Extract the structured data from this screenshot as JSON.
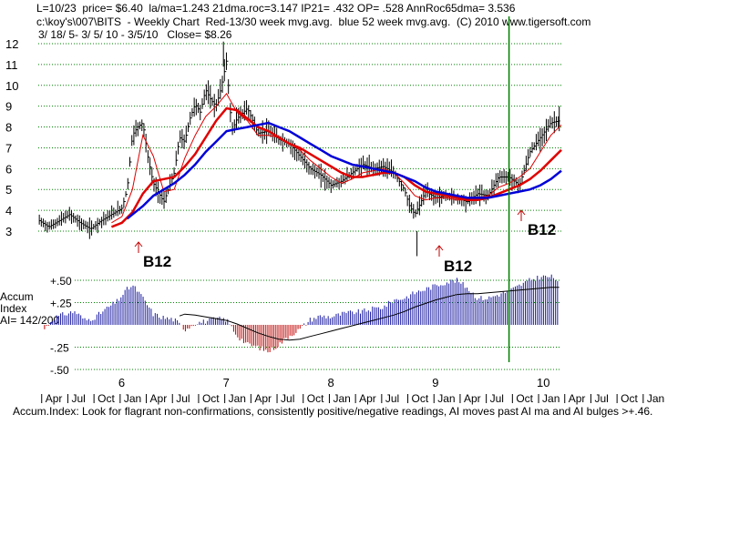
{
  "header": {
    "line1": "L=10/23  price= $6.40  la/ma=1.243 21dma.roc=3.147 IP21= .432 OP= .528 AnnRoc65dma= 3.536",
    "line2": "c:\\koy's\\007\\BITS  - Weekly Chart  Red-13/30 week mvg.avg.  blue 52 week mvg.avg.  (C) 2010 www.tigersoft.com",
    "line3": "3/ 18/ 5- 3/ 5/ 10 - 3/5/10   Close= $8.26"
  },
  "footer": "Accum.Index: Look for flagrant non-confirmations, consistently positive/negative readings, AI moves past AI ma and AI bulges >+.46.",
  "ai_panel": {
    "title_lines": [
      "Accum",
      "Index",
      "AI= 142/200"
    ]
  },
  "colors": {
    "price": "#000000",
    "ma_red": "#e00000",
    "ma_blue": "#0000d8",
    "ai_positive": "#1a1aa0",
    "ai_negative": "#c00000",
    "grid": "#008000",
    "signal_line": "#008000",
    "arrow": "#c00000"
  },
  "chart_data": [
    {
      "type": "line",
      "title": "",
      "ylim": [
        3,
        12
      ],
      "y_ticks": [
        3,
        4,
        5,
        6,
        7,
        8,
        9,
        10,
        11,
        12
      ],
      "x_year_labels": [
        "6",
        "7",
        "8",
        "9",
        "10"
      ],
      "x_month_labels": [
        "Apr",
        "Jul",
        "Oct",
        "Jan",
        "Apr",
        "Jul",
        "Oct",
        "Jan",
        "Apr",
        "Jul",
        "Oct",
        "Jan",
        "Apr",
        "Jul",
        "Oct",
        "Jan",
        "Apr",
        "Jul",
        "Oct",
        "Jan",
        "Apr",
        "Jul",
        "Oct",
        "Jan"
      ],
      "x_range": [
        2005.2,
        2010.2
      ],
      "series": [
        {
          "kind": "price",
          "x": [
            2005.21,
            2005.3,
            2005.4,
            2005.5,
            2005.6,
            2005.7,
            2005.8,
            2005.9,
            2006.0,
            2006.05,
            2006.1,
            2006.15,
            2006.2,
            2006.25,
            2006.3,
            2006.4,
            2006.5,
            2006.55,
            2006.6,
            2006.65,
            2006.7,
            2006.75,
            2006.8,
            2006.85,
            2006.9,
            2006.95,
            2007.0,
            2007.05,
            2007.1,
            2007.2,
            2007.3,
            2007.4,
            2007.5,
            2007.6,
            2007.7,
            2007.8,
            2007.9,
            2008.0,
            2008.1,
            2008.2,
            2008.3,
            2008.4,
            2008.5,
            2008.6,
            2008.7,
            2008.75,
            2008.8,
            2008.85,
            2008.9,
            2009.0,
            2009.1,
            2009.2,
            2009.3,
            2009.4,
            2009.5,
            2009.6,
            2009.7,
            2009.8,
            2009.9,
            2010.0,
            2010.1,
            2010.18
          ],
          "y": [
            3.5,
            3.2,
            3.5,
            3.8,
            3.4,
            3.1,
            3.5,
            3.8,
            4.1,
            5.0,
            7.6,
            8.0,
            8.2,
            6.5,
            5.3,
            4.4,
            5.8,
            7.5,
            7.3,
            8.4,
            9.1,
            8.7,
            9.8,
            9.3,
            9.0,
            9.9,
            11.2,
            7.8,
            8.4,
            8.9,
            7.7,
            7.8,
            7.4,
            7.2,
            6.6,
            6.0,
            5.7,
            5.2,
            5.4,
            5.8,
            6.2,
            6.0,
            6.1,
            5.8,
            5.0,
            4.2,
            3.8,
            4.3,
            4.9,
            4.6,
            4.7,
            4.6,
            4.4,
            4.8,
            4.7,
            5.6,
            5.6,
            5.2,
            6.8,
            7.5,
            8.2,
            8.3
          ]
        },
        {
          "kind": "ma_thin_red",
          "label": "13 week",
          "x": [
            2005.9,
            2006.0,
            2006.1,
            2006.2,
            2006.3,
            2006.4,
            2006.5,
            2006.6,
            2006.7,
            2006.8,
            2006.9,
            2007.0,
            2007.1,
            2007.2,
            2007.3,
            2007.4,
            2007.5,
            2007.6,
            2007.7,
            2007.8,
            2007.9,
            2008.0,
            2008.1,
            2008.2,
            2008.3,
            2008.4,
            2008.5,
            2008.6,
            2008.7,
            2008.8,
            2008.9,
            2009.0,
            2009.1,
            2009.2,
            2009.3,
            2009.4,
            2009.5,
            2009.6,
            2009.7,
            2009.8,
            2009.9,
            2010.0,
            2010.1,
            2010.2
          ],
          "y": [
            3.4,
            3.7,
            5.0,
            7.6,
            6.6,
            4.9,
            5.0,
            6.5,
            7.6,
            8.5,
            9.0,
            9.6,
            8.7,
            8.3,
            7.6,
            7.6,
            7.5,
            7.2,
            6.9,
            6.4,
            6.0,
            5.6,
            5.3,
            5.5,
            5.8,
            5.9,
            6.0,
            5.8,
            5.3,
            4.7,
            4.5,
            4.6,
            4.6,
            4.5,
            4.5,
            4.6,
            4.7,
            5.1,
            5.3,
            5.6,
            6.0,
            6.8,
            7.6,
            8.1
          ]
        },
        {
          "kind": "ma_thick_red",
          "label": "30 week",
          "x": [
            2005.9,
            2006.0,
            2006.1,
            2006.2,
            2006.3,
            2006.4,
            2006.5,
            2006.6,
            2006.7,
            2006.8,
            2006.9,
            2007.0,
            2007.1,
            2007.2,
            2007.3,
            2007.4,
            2007.5,
            2007.6,
            2007.7,
            2007.8,
            2007.9,
            2008.0,
            2008.1,
            2008.2,
            2008.3,
            2008.4,
            2008.5,
            2008.6,
            2008.7,
            2008.8,
            2008.9,
            2009.0,
            2009.1,
            2009.2,
            2009.3,
            2009.4,
            2009.5,
            2009.6,
            2009.7,
            2009.8,
            2009.9,
            2010.0,
            2010.1,
            2010.2
          ],
          "y": [
            3.2,
            3.4,
            3.9,
            4.8,
            5.4,
            5.5,
            5.6,
            6.1,
            6.7,
            7.5,
            8.3,
            8.9,
            8.8,
            8.4,
            8.0,
            7.8,
            7.5,
            7.2,
            7.0,
            6.7,
            6.4,
            6.1,
            5.8,
            5.6,
            5.6,
            5.7,
            5.8,
            5.8,
            5.6,
            5.2,
            4.9,
            4.8,
            4.7,
            4.6,
            4.5,
            4.5,
            4.6,
            4.8,
            5.0,
            5.2,
            5.5,
            5.9,
            6.4,
            6.9
          ]
        },
        {
          "kind": "ma_blue",
          "label": "52 week",
          "x": [
            2006.05,
            2006.1,
            2006.2,
            2006.3,
            2006.4,
            2006.5,
            2006.6,
            2006.7,
            2006.8,
            2006.9,
            2007.0,
            2007.1,
            2007.2,
            2007.3,
            2007.4,
            2007.5,
            2007.6,
            2007.7,
            2007.8,
            2007.9,
            2008.0,
            2008.1,
            2008.2,
            2008.3,
            2008.4,
            2008.5,
            2008.6,
            2008.7,
            2008.8,
            2008.9,
            2009.0,
            2009.1,
            2009.2,
            2009.3,
            2009.4,
            2009.5,
            2009.6,
            2009.7,
            2009.8,
            2009.9,
            2010.0,
            2010.1,
            2010.2
          ],
          "y": [
            3.6,
            3.8,
            4.2,
            4.7,
            5.0,
            5.3,
            5.7,
            6.2,
            6.8,
            7.3,
            7.8,
            7.9,
            8.0,
            8.1,
            8.2,
            8.0,
            7.8,
            7.5,
            7.2,
            6.9,
            6.6,
            6.4,
            6.2,
            6.1,
            6.0,
            5.9,
            5.8,
            5.6,
            5.4,
            5.1,
            4.9,
            4.8,
            4.7,
            4.6,
            4.6,
            4.6,
            4.7,
            4.8,
            4.9,
            5.0,
            5.2,
            5.5,
            5.9
          ]
        }
      ],
      "annotations": [
        {
          "text": "B12",
          "x": 2006.05,
          "y": 2.6
        },
        {
          "text": "B12",
          "x": 2008.95,
          "y": 2.1
        },
        {
          "text": "B12",
          "x": 2009.7,
          "y": 3.6
        }
      ],
      "signal_line_x": 2009.7
    },
    {
      "type": "bar",
      "title": "",
      "ylim": [
        -0.55,
        0.55
      ],
      "y_ticks": [
        0.5,
        0.25,
        -0.25,
        -0.5
      ],
      "y_tick_labels": [
        "+.50",
        "+.25",
        "-.25",
        "-.50"
      ],
      "x_range": [
        2005.2,
        2010.2
      ],
      "series": [
        {
          "kind": "ai_histogram",
          "x": [
            2005.25,
            2005.35,
            2005.45,
            2005.55,
            2005.65,
            2005.75,
            2005.85,
            2005.95,
            2006.0,
            2006.05,
            2006.1,
            2006.15,
            2006.2,
            2006.3,
            2006.4,
            2006.5,
            2006.6,
            2006.7,
            2006.8,
            2006.9,
            2007.0,
            2007.1,
            2007.2,
            2007.3,
            2007.4,
            2007.5,
            2007.6,
            2007.7,
            2007.8,
            2007.9,
            2008.0,
            2008.1,
            2008.2,
            2008.3,
            2008.4,
            2008.5,
            2008.6,
            2008.7,
            2008.8,
            2008.9,
            2009.0,
            2009.1,
            2009.2,
            2009.3,
            2009.4,
            2009.5,
            2009.6,
            2009.7,
            2009.8,
            2009.9,
            2010.0,
            2010.1,
            2010.18
          ],
          "values": [
            -0.06,
            0.08,
            0.12,
            0.15,
            0.05,
            0.09,
            0.18,
            0.26,
            0.33,
            0.4,
            0.44,
            0.38,
            0.3,
            0.12,
            0.08,
            0.06,
            -0.05,
            0.02,
            0.04,
            0.07,
            0.06,
            -0.12,
            -0.22,
            -0.25,
            -0.3,
            -0.22,
            -0.12,
            -0.05,
            0.06,
            0.1,
            0.09,
            0.12,
            0.14,
            0.15,
            0.18,
            0.2,
            0.28,
            0.3,
            0.36,
            0.4,
            0.44,
            0.48,
            0.5,
            0.42,
            0.3,
            0.3,
            0.34,
            0.38,
            0.44,
            0.5,
            0.54,
            0.54,
            0.5
          ]
        },
        {
          "kind": "ai_ma",
          "x": [
            2006.55,
            2006.6,
            2006.7,
            2006.8,
            2006.9,
            2007.0,
            2007.1,
            2007.2,
            2007.3,
            2007.4,
            2007.5,
            2007.6,
            2007.7,
            2007.8,
            2007.9,
            2008.0,
            2008.1,
            2008.2,
            2008.3,
            2008.4,
            2008.5,
            2008.6,
            2008.7,
            2008.8,
            2008.9,
            2009.0,
            2009.1,
            2009.2,
            2009.3,
            2009.4,
            2009.5,
            2009.6,
            2009.7,
            2009.8,
            2009.9,
            2010.0,
            2010.1,
            2010.18
          ],
          "values": [
            0.1,
            0.12,
            0.11,
            0.09,
            0.07,
            0.05,
            0.01,
            -0.04,
            -0.09,
            -0.13,
            -0.16,
            -0.17,
            -0.16,
            -0.13,
            -0.1,
            -0.07,
            -0.04,
            -0.01,
            0.02,
            0.05,
            0.08,
            0.11,
            0.15,
            0.2,
            0.24,
            0.28,
            0.31,
            0.34,
            0.35,
            0.35,
            0.36,
            0.37,
            0.38,
            0.39,
            0.4,
            0.41,
            0.42,
            0.42
          ]
        }
      ]
    }
  ]
}
